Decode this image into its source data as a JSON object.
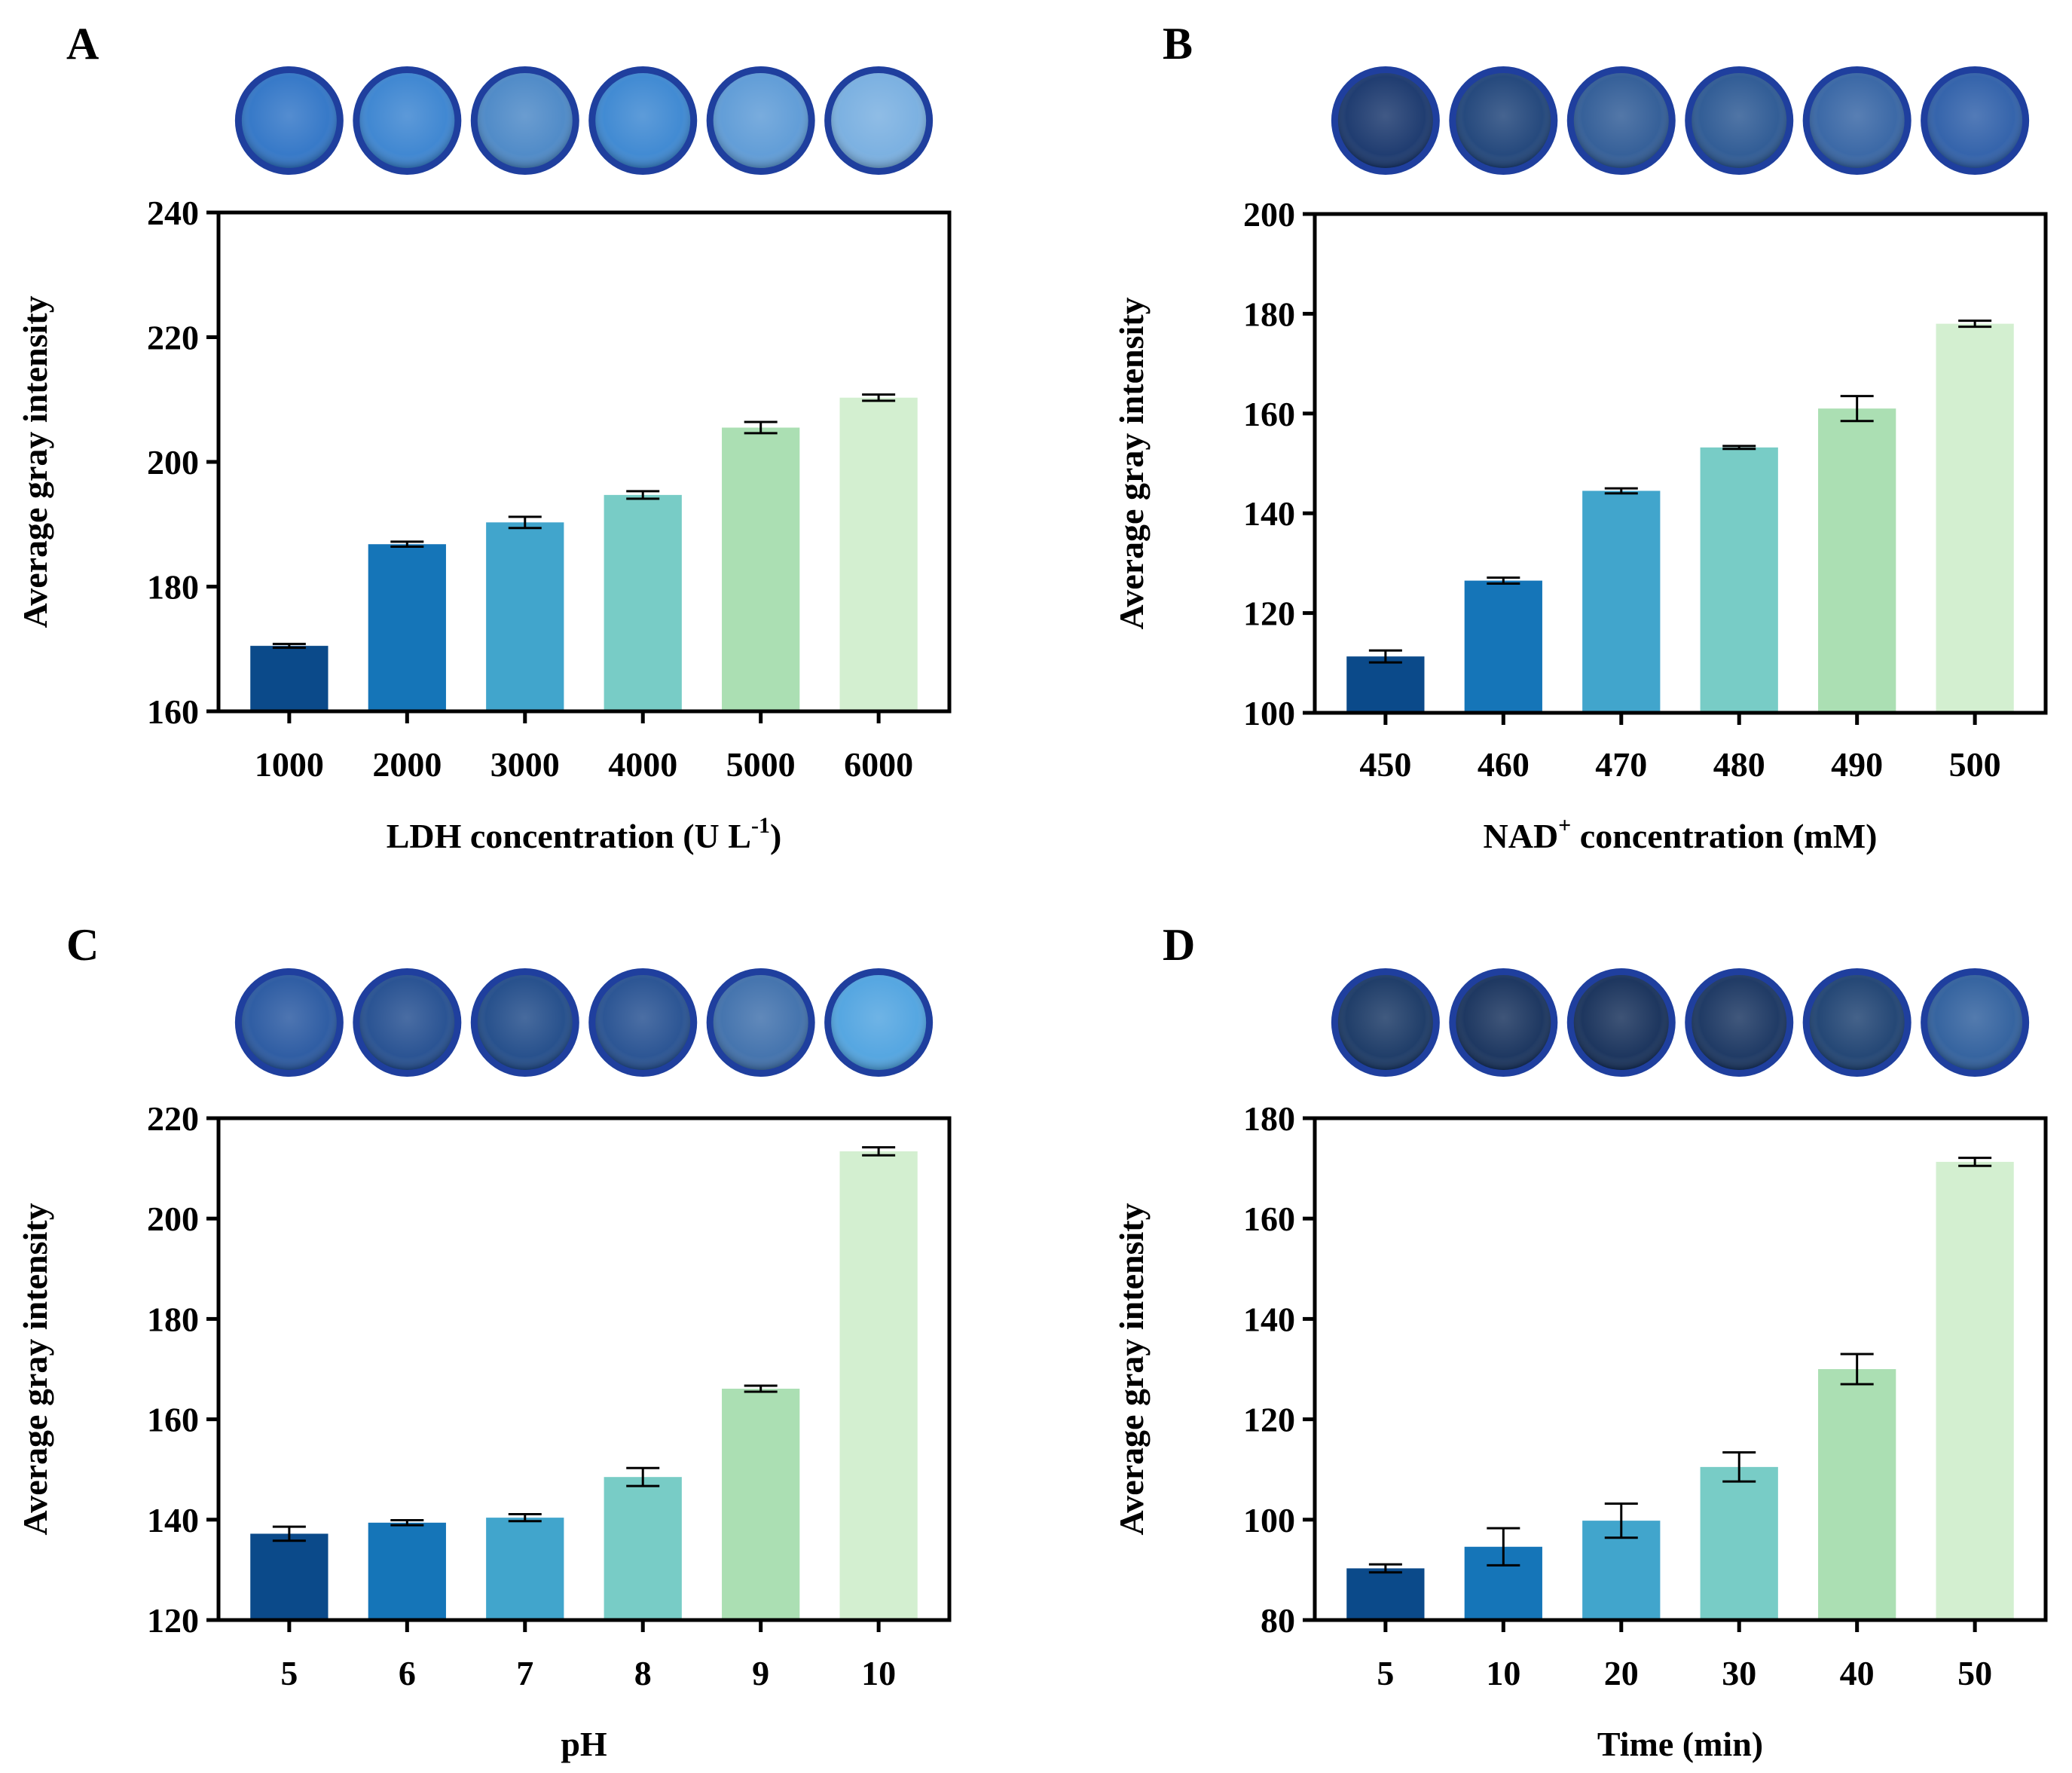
{
  "figure": {
    "bar_colors": [
      "#0b4a8a",
      "#1575b8",
      "#41a5cc",
      "#78ccc6",
      "#abdfb3",
      "#d3efd0"
    ],
    "axis_color": "#000000",
    "dish_rim_color": "#1f3f9e"
  },
  "chart_data": [
    {
      "panel": "A",
      "type": "bar",
      "categories": [
        "1000",
        "2000",
        "3000",
        "4000",
        "5000",
        "6000"
      ],
      "values": [
        170.5,
        186.8,
        190.3,
        194.7,
        205.5,
        210.3
      ],
      "errors": [
        0.3,
        0.4,
        0.9,
        0.6,
        0.9,
        0.5
      ],
      "xlabel": "LDH concentration (U L",
      "xlabel_sup": "-1",
      "xlabel_end": ")",
      "ylabel": "Average gray intensity",
      "ylim": [
        160,
        240
      ],
      "yticks": [
        160,
        180,
        200,
        220,
        240
      ],
      "dish_colors": [
        "#2f74c6",
        "#3983d0",
        "#4a87c6",
        "#3a86d1",
        "#5c9ad6",
        "#77aee0"
      ]
    },
    {
      "panel": "B",
      "type": "bar",
      "categories": [
        "450",
        "460",
        "470",
        "480",
        "490",
        "500"
      ],
      "values": [
        111.3,
        126.5,
        144.5,
        153.2,
        161.0,
        178.0
      ],
      "errors": [
        1.2,
        0.6,
        0.5,
        0.3,
        2.5,
        0.6
      ],
      "xlabel": "NAD",
      "xlabel_sup": "+",
      "xlabel_end": " concentration (mM)",
      "ylabel": "Average gray intensity",
      "ylim": [
        100,
        200
      ],
      "yticks": [
        100,
        120,
        140,
        160,
        180,
        200
      ],
      "dish_colors": [
        "#17356b",
        "#1d4278",
        "#2e5a95",
        "#2a5792",
        "#3463a3",
        "#2d5ea8"
      ]
    },
    {
      "panel": "C",
      "type": "bar",
      "categories": [
        "5",
        "6",
        "7",
        "8",
        "9",
        "10"
      ],
      "values": [
        137.2,
        139.4,
        140.4,
        148.5,
        166.1,
        213.4
      ],
      "errors": [
        1.4,
        0.5,
        0.7,
        1.8,
        0.6,
        0.8
      ],
      "xlabel": "pH",
      "xlabel_sup": "",
      "xlabel_end": "",
      "ylabel": "Average gray intensity",
      "ylim": [
        120,
        220
      ],
      "yticks": [
        120,
        140,
        160,
        180,
        200,
        220
      ],
      "dish_colors": [
        "#2757a0",
        "#224d8f",
        "#1f4a88",
        "#244f90",
        "#3e6fab",
        "#4fa3e0"
      ]
    },
    {
      "panel": "D",
      "type": "bar",
      "categories": [
        "5",
        "10",
        "20",
        "30",
        "40",
        "50"
      ],
      "values": [
        90.3,
        94.6,
        99.8,
        110.5,
        130.0,
        171.3
      ],
      "errors": [
        0.8,
        3.7,
        3.4,
        2.9,
        3.0,
        0.8
      ],
      "xlabel": "Time (min)",
      "xlabel_sup": "",
      "xlabel_end": "",
      "ylabel": "Average gray intensity",
      "ylim": [
        80,
        180
      ],
      "yticks": [
        80,
        100,
        120,
        140,
        160,
        180
      ],
      "dish_colors": [
        "#173663",
        "#15305b",
        "#142e58",
        "#17335f",
        "#1c4070",
        "#2e5e9c"
      ]
    }
  ]
}
